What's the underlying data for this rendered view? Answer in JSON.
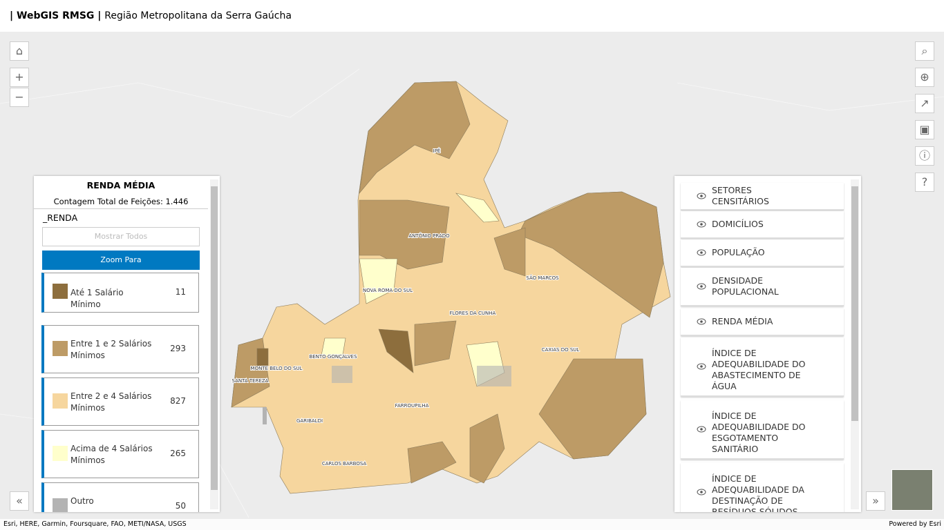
{
  "header": {
    "app": "WebGIS RMSG",
    "subtitle": "Região Metropolitana da Serra Gaúcha"
  },
  "legend": {
    "title": "RENDA MÉDIA",
    "count": "Contagem Total de Feições: 1.446",
    "field": "_RENDA",
    "show_all": "Mostrar Todos",
    "zoom": "Zoom Para",
    "items": [
      {
        "label": "Até 1 Salário Mínimo",
        "count": 11
      },
      {
        "label": "Entre 1 e 2 Salários Mínimos",
        "count": 293
      },
      {
        "label": "Entre 2 e 4 Salários Mínimos",
        "count": 827
      },
      {
        "label": "Acima de 4 Salários Mínimos",
        "count": 265
      },
      {
        "label": "Outro",
        "count": 50
      }
    ]
  },
  "layers": [
    "SETORES CENSITÁRIOS",
    "DOMICÍLIOS",
    "POPULAÇÃO",
    "DENSIDADE POPULACIONAL",
    "RENDA MÉDIA",
    "ÍNDICE DE ADEQUABILIDADE DO ABASTECIMENTO DE ÁGUA",
    "ÍNDICE DE ADEQUABILIDADE DO ESGOTAMENTO SANITÁRIO",
    "ÍNDICE DE ADEQUABILIDADE DA DESTINAÇÃO DE RESÍDUOS SÓLIDOS"
  ],
  "map_labels": [
    "IPÊ",
    "ANTÔNIO PRADO",
    "NOVA ROMA DO SUL",
    "SÃO MARCOS",
    "FLORES DA CUNHA",
    "CAXIAS DO SUL",
    "BENTO GONÇALVES",
    "MONTE BELO DO SUL",
    "SANTA TEREZA",
    "FARROUPILHA",
    "GARIBALDI",
    "CARLOS BARBOSA"
  ],
  "attribution": "Esri, HERE, Garmin, Foursquare, FAO, METI/NASA, USGS",
  "powered": "Powered by Esri"
}
